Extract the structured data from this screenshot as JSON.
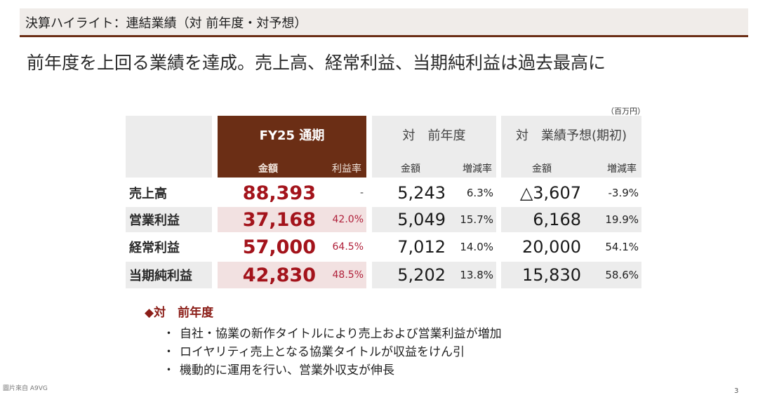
{
  "header": {
    "title": "決算ハイライト：連結業績（対 前年度・対予想）"
  },
  "headline": "前年度を上回る業績を達成。売上高、経常利益、当期純利益は過去最高に",
  "table": {
    "unit": "（百万円）",
    "groups": {
      "fy25": "FY25 通期",
      "prev_year": "対　前年度",
      "forecast": "対　業績予想(期初)"
    },
    "subheaders": {
      "fy25_amount": "金額",
      "fy25_margin": "利益率",
      "prev_amount": "金額",
      "prev_change": "増減率",
      "fc_amount": "金額",
      "fc_change": "増減率"
    },
    "rows": [
      {
        "label": "売上高",
        "fy25": "88,393",
        "margin": "-",
        "prev_amount": "5,243",
        "prev_change": "6.3%",
        "fc_amount": "△3,607",
        "fc_change": "-3.9%"
      },
      {
        "label": "営業利益",
        "fy25": "37,168",
        "margin": "42.0%",
        "prev_amount": "5,049",
        "prev_change": "15.7%",
        "fc_amount": "6,168",
        "fc_change": "19.9%"
      },
      {
        "label": "経常利益",
        "fy25": "57,000",
        "margin": "64.5%",
        "prev_amount": "7,012",
        "prev_change": "14.0%",
        "fc_amount": "20,000",
        "fc_change": "54.1%"
      },
      {
        "label": "当期純利益",
        "fy25": "42,830",
        "margin": "48.5%",
        "prev_amount": "5,202",
        "prev_change": "13.8%",
        "fc_amount": "15,830",
        "fc_change": "58.6%"
      }
    ]
  },
  "notes": {
    "heading": "◆対　前年度",
    "bullet_marker": "・",
    "items": [
      "自社・協業の新作タイトルにより売上および営業利益が増加",
      "ロイヤリティ売上となる協業タイトルが収益をけん引",
      "機動的に運用を行い、営業外収支が伸長"
    ]
  },
  "footer": {
    "source": "圖片來自 A9VG",
    "page": "3"
  },
  "colors": {
    "accent_brown": "#6b2e15",
    "cell_gray": "#ececec",
    "cell_pink": "#f2e1e1",
    "value_red": "#a3131b"
  }
}
